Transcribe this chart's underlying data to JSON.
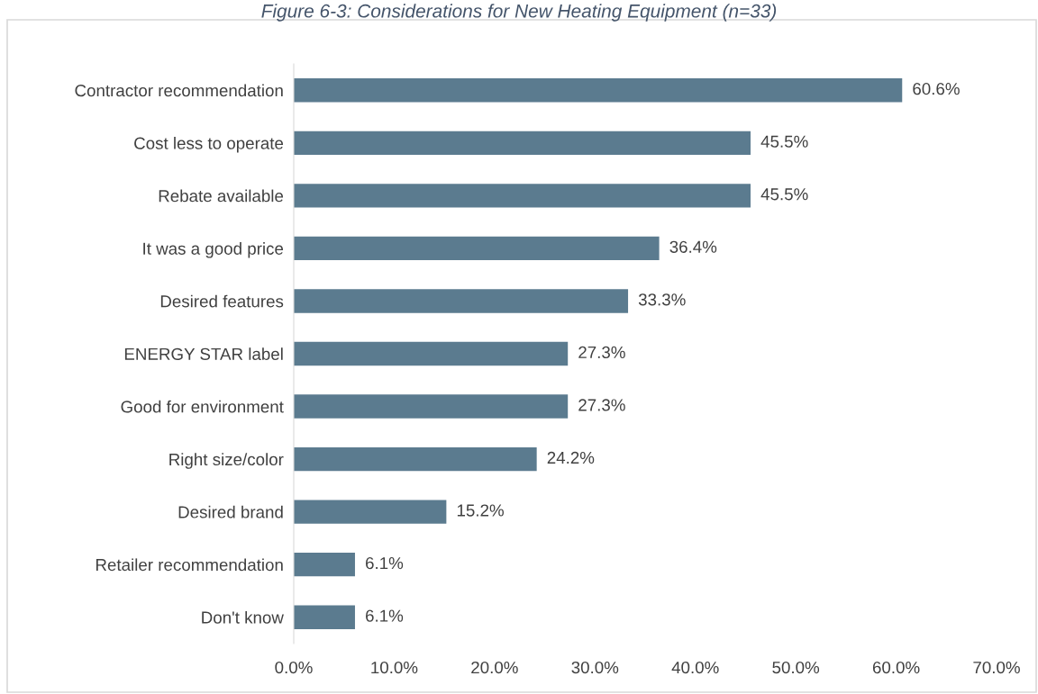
{
  "chart_data": {
    "type": "bar",
    "orientation": "horizontal",
    "title": "Figure 6-3: Considerations for New Heating Equipment (n=33)",
    "categories": [
      "Contractor recommendation",
      "Cost less to operate",
      "Rebate available",
      "It was a good price",
      "Desired features",
      "ENERGY STAR label",
      "Good for environment",
      "Right size/color",
      "Desired brand",
      "Retailer recommendation",
      "Don't know"
    ],
    "values": [
      60.6,
      45.5,
      45.5,
      36.4,
      33.3,
      27.3,
      27.3,
      24.2,
      15.2,
      6.1,
      6.1
    ],
    "value_labels": [
      "60.6%",
      "45.5%",
      "45.5%",
      "36.4%",
      "33.3%",
      "27.3%",
      "27.3%",
      "24.2%",
      "15.2%",
      "6.1%",
      "6.1%"
    ],
    "color": "#5b7b8f",
    "xlim": [
      0,
      70
    ],
    "xticks": [
      {
        "value": 0,
        "label": "0.0%"
      },
      {
        "value": 10,
        "label": "10.0%"
      },
      {
        "value": 20,
        "label": "20.0%"
      },
      {
        "value": 30,
        "label": "30.0%"
      },
      {
        "value": 40,
        "label": "40.0%"
      },
      {
        "value": 50,
        "label": "50.0%"
      },
      {
        "value": 60,
        "label": "60.0%"
      },
      {
        "value": 70,
        "label": "70.0%"
      }
    ],
    "grid": false
  }
}
